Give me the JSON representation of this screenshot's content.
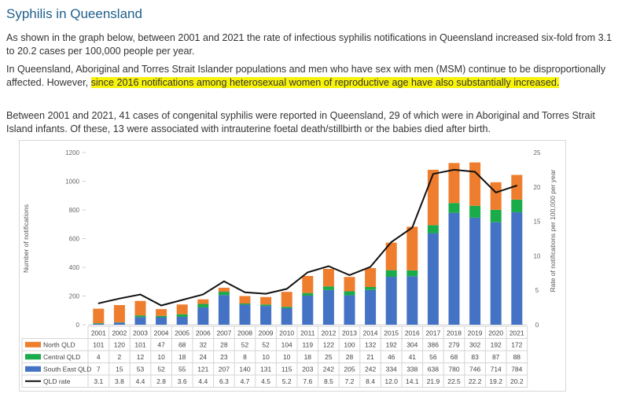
{
  "page": {
    "title": "Syphilis in Queensland",
    "p1": "As shown in the graph below, between 2001 and 2021 the rate of infectious syphilis notifications in Queensland increased six-fold from 3.1 to 20.2 cases per 100,000 people per year.",
    "p2_before": "In Queensland, Aboriginal and Torres Strait Islander populations and men who have sex with men (MSM) continue to be disproportionally affected. However, ",
    "p2_highlight": "since 2016 notifications among heterosexual women of reproductive age have also substantially increased.",
    "p3": "Between 2001 and 2021, 41 cases of congenital syphilis were reported in Queensland, 29 of which were in Aboriginal and Torres Strait Island infants. Of these, 13 were associated with intrauterine foetal death/stillbirth or the babies died after birth.",
    "highlight_color": "#f7f30a"
  },
  "chart_data": {
    "type": "bar",
    "stacked": true,
    "categories": [
      "2001",
      "2002",
      "2003",
      "2004",
      "2005",
      "2006",
      "2007",
      "2008",
      "2009",
      "2010",
      "2011",
      "2012",
      "2013",
      "2014",
      "2015",
      "2016",
      "2017",
      "2018",
      "2019",
      "2020",
      "2021"
    ],
    "series": [
      {
        "name": "North QLD",
        "color": "#ee7d2d",
        "values": [
          101,
          120,
          101,
          47,
          68,
          32,
          28,
          52,
          52,
          104,
          119,
          122,
          100,
          132,
          192,
          304,
          386,
          279,
          302,
          192,
          172
        ]
      },
      {
        "name": "Central QLD",
        "color": "#1aab4a",
        "values": [
          4,
          2,
          12,
          10,
          18,
          24,
          23,
          8,
          10,
          10,
          18,
          25,
          28,
          21,
          46,
          41,
          56,
          68,
          83,
          87,
          88
        ]
      },
      {
        "name": "South East QLD",
        "color": "#4472c4",
        "values": [
          7,
          15,
          53,
          52,
          55,
          121,
          207,
          140,
          131,
          115,
          203,
          242,
          205,
          242,
          334,
          338,
          638,
          780,
          746,
          714,
          784
        ]
      }
    ],
    "line_series": {
      "name": "QLD rate",
      "color": "#111111",
      "values": [
        3.1,
        3.8,
        4.4,
        2.8,
        3.6,
        4.4,
        6.3,
        4.7,
        4.5,
        5.2,
        7.6,
        8.5,
        7.2,
        8.4,
        12.0,
        14.1,
        21.9,
        22.5,
        22.2,
        19.2,
        20.2
      ]
    },
    "ylabel": "Number of notifications",
    "y2label": "Rate of notifications per 100,000 per year",
    "ylim": [
      0,
      1200
    ],
    "yticks": [
      0,
      200,
      400,
      600,
      800,
      1000,
      1200
    ],
    "y2lim": [
      0,
      25
    ],
    "y2ticks": [
      0,
      5,
      10,
      15,
      20,
      25
    ],
    "legend": "data-table-bottom",
    "grid": false
  }
}
